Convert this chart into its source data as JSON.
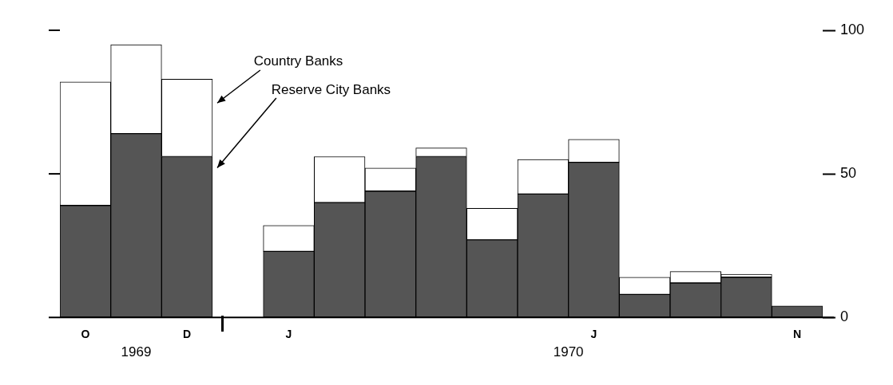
{
  "chart_data": {
    "type": "bar",
    "stacked": true,
    "categories": [
      "O",
      null,
      "D",
      null,
      "J",
      null,
      null,
      null,
      null,
      null,
      "J",
      null,
      null,
      null,
      "N"
    ],
    "series": [
      {
        "name": "Reserve City Banks",
        "color": "#555555",
        "values": [
          39,
          64,
          56,
          null,
          23,
          40,
          44,
          56,
          27,
          43,
          54,
          8,
          12,
          14,
          4
        ]
      },
      {
        "name": "Country Banks",
        "color": "#ffffff",
        "values": [
          43,
          31,
          27,
          null,
          9,
          16,
          8,
          3,
          11,
          12,
          8,
          6,
          4,
          1,
          0
        ]
      }
    ],
    "ylim": [
      0,
      100
    ],
    "yticks": [
      0,
      50,
      100
    ],
    "grid": false,
    "legend": false,
    "annotations": [
      "1969",
      "1970"
    ]
  }
}
